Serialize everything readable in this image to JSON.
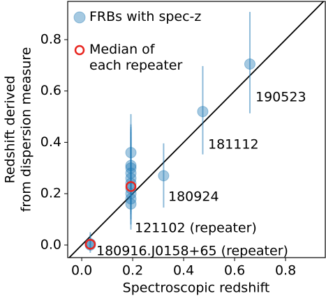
{
  "chart_data": {
    "type": "scatter",
    "xlabel": "Spectroscopic redshift",
    "ylabel": [
      "Redshift derived",
      "from dispersion measure"
    ],
    "xlim": [
      -0.055,
      0.956
    ],
    "ylim": [
      -0.049,
      0.949
    ],
    "xticks": [
      {
        "value": 0,
        "label": "0.0"
      },
      0.2,
      0.4,
      0.6,
      0.8
    ],
    "yticks": [
      {
        "value": 0,
        "label": "0.0"
      },
      0.2,
      0.4,
      0.6,
      0.8
    ],
    "legend": "upper left",
    "series": [
      {
        "name": "FRBs with spec-z",
        "color": "#1f77b4",
        "marker": "filled",
        "x": [
          0.66,
          0.475,
          0.3214,
          0.193,
          0.193,
          0.193,
          0.193,
          0.193,
          0.193,
          0.193,
          0.193,
          0.193,
          0.193,
          0.0337,
          0.0337
        ],
        "values": [
          0.705,
          0.52,
          0.27,
          0.16,
          0.18,
          0.2,
          0.22,
          0.24,
          0.26,
          0.28,
          0.3,
          0.31,
          0.36,
          0.0,
          0.005
        ],
        "lower": [
          0.513,
          0.353,
          0.146,
          0.06,
          0.08,
          0.1,
          0.12,
          0.13,
          0.15,
          0.16,
          0.18,
          0.19,
          0.22,
          -0.03,
          -0.02
        ],
        "upper": [
          0.908,
          0.697,
          0.396,
          0.3,
          0.32,
          0.36,
          0.4,
          0.45,
          0.42,
          0.44,
          0.46,
          0.47,
          0.51,
          0.04,
          0.05
        ]
      },
      {
        "name": "Median of\neach repeater",
        "color": "#e8251f",
        "marker": "open",
        "x": [
          0.193,
          0.0337
        ],
        "values": [
          0.228,
          0.003
        ]
      }
    ],
    "annotations": [
      "190523",
      "181112",
      "180924",
      "121102 (repeater)",
      "180916.J0158+65 (repeater)"
    ]
  }
}
